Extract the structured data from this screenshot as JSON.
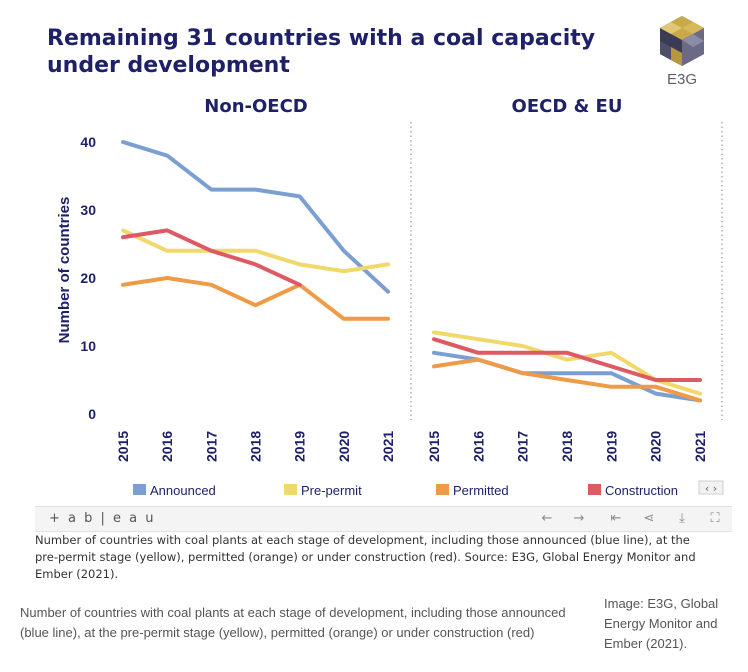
{
  "title": "Remaining 31 countries with a coal capacity under development",
  "logo": {
    "text": "E3G",
    "icon": "cube-logo-icon"
  },
  "colors": {
    "title": "#1f2168",
    "Announced": "#7b9fd2",
    "Pre-permit": "#f1d86a",
    "Permitted": "#ee9a46",
    "Construction": "#dd5a64",
    "axis": "#1f2168"
  },
  "chart_data": {
    "type": "line",
    "ylabel": "Number of countries",
    "ylim": [
      0,
      42
    ],
    "yticks": [
      0,
      10,
      20,
      30,
      40
    ],
    "x": [
      "2015",
      "2016",
      "2017",
      "2018",
      "2019",
      "2020",
      "2021"
    ],
    "legend": {
      "position": "bottom",
      "entries": [
        "Announced",
        "Pre-permit",
        "Permitted",
        "Construction"
      ]
    },
    "panels": [
      {
        "title": "Non-OECD",
        "series": [
          {
            "name": "Announced",
            "values": [
              40,
              38,
              33,
              33,
              32,
              24,
              18
            ]
          },
          {
            "name": "Pre-permit",
            "values": [
              27,
              24,
              24,
              24,
              22,
              21,
              22
            ]
          },
          {
            "name": "Permitted",
            "values": [
              19,
              20,
              19,
              16,
              19,
              14,
              14
            ]
          },
          {
            "name": "Construction",
            "values": [
              26,
              27,
              24,
              22,
              19,
              null,
              null
            ]
          }
        ]
      },
      {
        "title": "OECD & EU",
        "series": [
          {
            "name": "Announced",
            "values": [
              9,
              8,
              6,
              6,
              6,
              3,
              2
            ]
          },
          {
            "name": "Pre-permit",
            "values": [
              12,
              11,
              10,
              8,
              9,
              5,
              3
            ]
          },
          {
            "name": "Permitted",
            "values": [
              7,
              8,
              6,
              5,
              4,
              4,
              2
            ]
          },
          {
            "name": "Construction",
            "values": [
              11,
              9,
              9,
              9,
              7,
              5,
              5
            ]
          }
        ]
      }
    ]
  },
  "tableau": {
    "logo_text": "+ a b | e a u",
    "icons": [
      "undo-icon",
      "redo-icon",
      "revert-icon",
      "share-icon",
      "download-icon",
      "fullscreen-icon"
    ]
  },
  "chart_caption": "Number of countries with coal plants at each stage of development, including those announced (blue line), at the pre-permit stage (yellow), permitted (orange) or under construction (red). Source: E3G, Global Energy Monitor and Ember (2021).",
  "page_caption": "Number of countries with coal plants at each stage of development, including those announced (blue line), at the pre-permit stage (yellow), permitted (orange) or under construction (red)",
  "image_credit": "Image: E3G, Global Energy Monitor and Ember (2021)."
}
